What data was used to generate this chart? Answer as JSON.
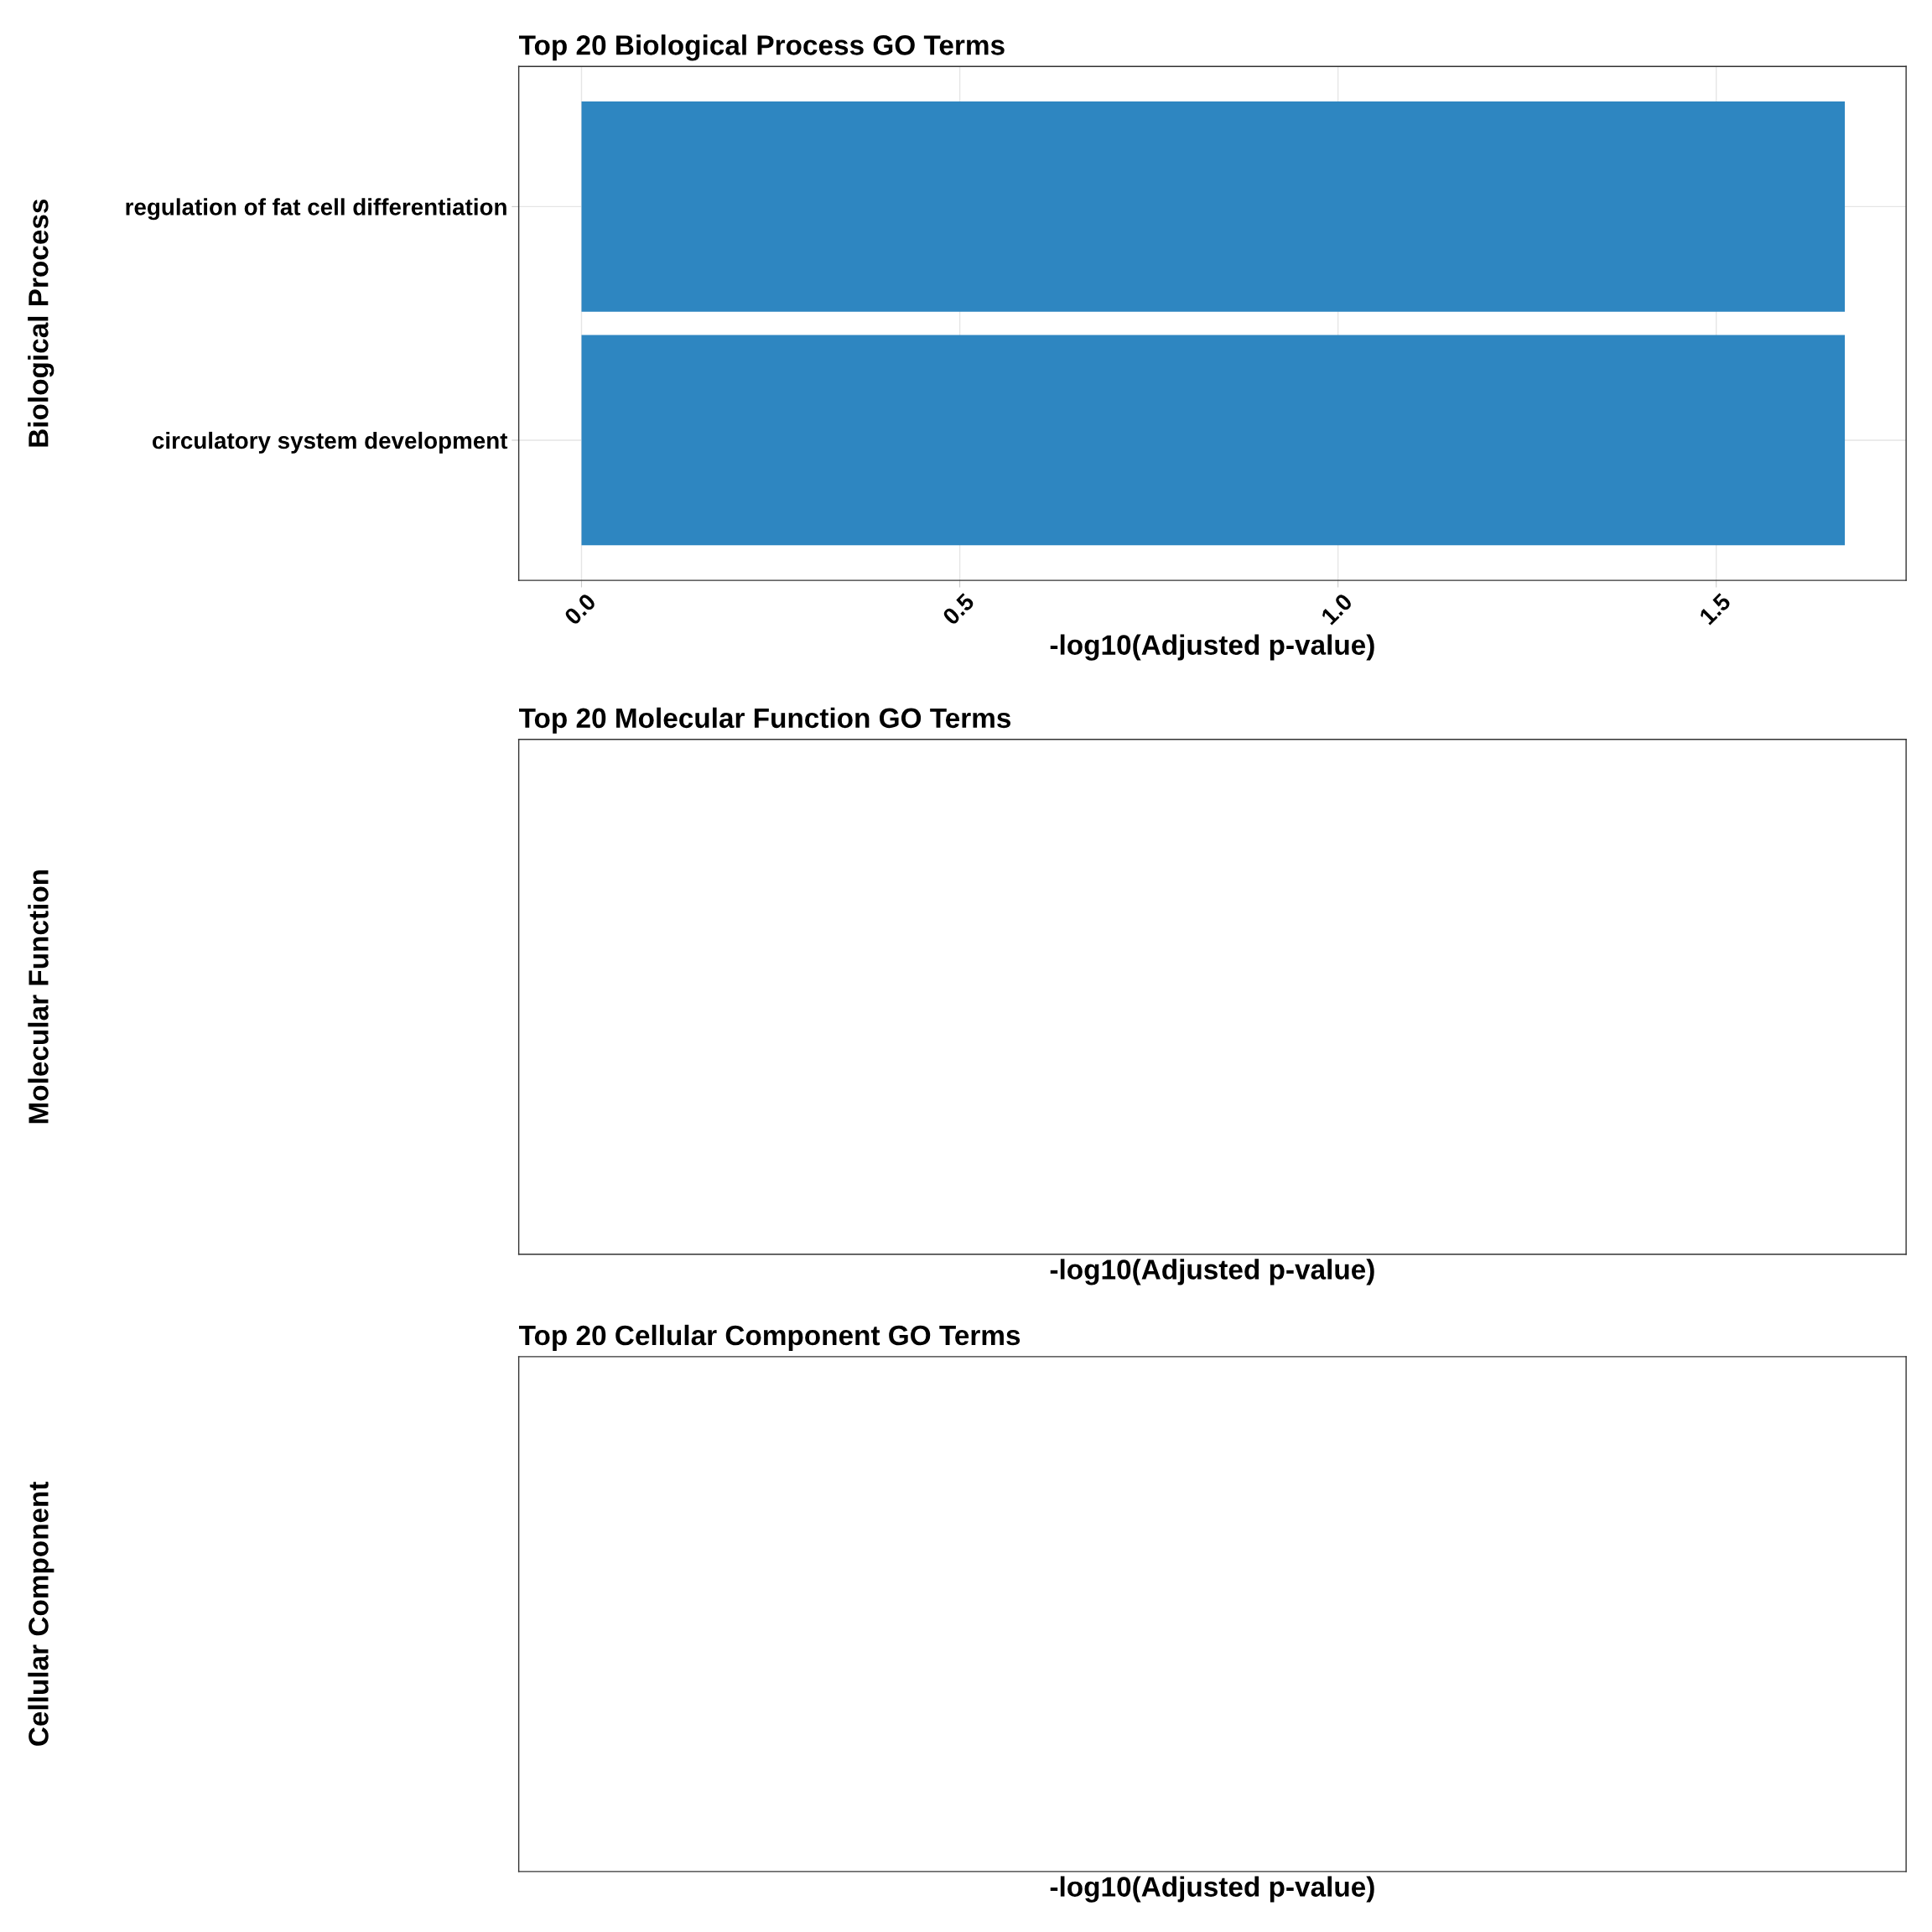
{
  "chart_data": [
    {
      "type": "bar",
      "orientation": "horizontal",
      "title": "Top 20 Biological Process GO Terms",
      "xlabel": "-log10(Adjusted p-value)",
      "ylabel": "Biological Process",
      "categories": [
        "regulation of fat cell differentiation",
        "circulatory system development"
      ],
      "values": [
        1.67,
        1.67
      ],
      "color": "#2e86c1",
      "xlim": [
        -0.083,
        1.751
      ],
      "xticks": [
        {
          "value": 0,
          "label": "0.0"
        },
        0.5,
        {
          "value": 1,
          "label": "1.0"
        },
        1.5
      ],
      "grid": true
    },
    {
      "type": "other",
      "title": "Top 20 Molecular Function GO Terms",
      "xlabel": "-log10(Adjusted p-value)",
      "ylabel": "Molecular Function"
    },
    {
      "type": "other",
      "title": "Top 20 Cellular Component GO Terms",
      "xlabel": "-log10(Adjusted p-value)",
      "ylabel": "Cellular Component"
    }
  ]
}
